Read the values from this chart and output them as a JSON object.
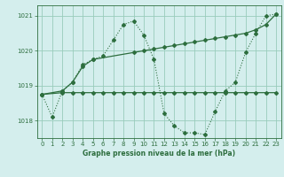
{
  "bg_color": "#d4eeed",
  "grid_color": "#99ccbb",
  "line_color": "#2d6e3e",
  "title": "Graphe pression niveau de la mer (hPa)",
  "xlim": [
    -0.5,
    23.5
  ],
  "ylim": [
    1017.5,
    1021.3
  ],
  "yticks": [
    1018,
    1019,
    1020,
    1021
  ],
  "xticks": [
    0,
    1,
    2,
    3,
    4,
    5,
    6,
    7,
    8,
    9,
    10,
    11,
    12,
    13,
    14,
    15,
    16,
    17,
    18,
    19,
    20,
    21,
    22,
    23
  ],
  "series1_x": [
    0,
    1,
    2,
    3,
    4,
    5,
    6,
    7,
    8,
    9,
    10,
    11,
    12,
    13,
    14,
    15,
    16,
    17,
    18,
    19,
    20,
    21,
    22,
    23
  ],
  "series1_y": [
    1018.75,
    1018.1,
    1018.85,
    1019.1,
    1019.6,
    1019.75,
    1019.85,
    1020.3,
    1020.75,
    1020.85,
    1020.45,
    1019.75,
    1018.2,
    1017.85,
    1017.65,
    1017.65,
    1017.6,
    1018.25,
    1018.85,
    1019.1,
    1019.95,
    1020.5,
    1021.0,
    1021.05
  ],
  "series2_x": [
    0,
    2,
    3,
    4,
    5,
    9,
    10,
    11,
    12,
    13,
    14,
    15,
    16,
    17,
    18,
    19,
    20,
    21,
    22,
    23
  ],
  "series2_y": [
    1018.75,
    1018.85,
    1019.1,
    1019.55,
    1019.75,
    1019.95,
    1020.0,
    1020.05,
    1020.1,
    1020.15,
    1020.2,
    1020.25,
    1020.3,
    1020.35,
    1020.4,
    1020.45,
    1020.5,
    1020.6,
    1020.75,
    1021.05
  ],
  "series3_x": [
    0,
    2,
    3,
    4,
    5,
    6,
    7,
    8,
    9,
    10,
    11,
    12,
    13,
    14,
    15,
    16,
    17,
    18,
    19,
    20,
    21,
    22,
    23
  ],
  "series3_y": [
    1018.75,
    1018.8,
    1018.8,
    1018.8,
    1018.8,
    1018.8,
    1018.8,
    1018.8,
    1018.8,
    1018.8,
    1018.8,
    1018.8,
    1018.8,
    1018.8,
    1018.8,
    1018.8,
    1018.8,
    1018.8,
    1018.8,
    1018.8,
    1018.8,
    1018.8,
    1018.8
  ]
}
